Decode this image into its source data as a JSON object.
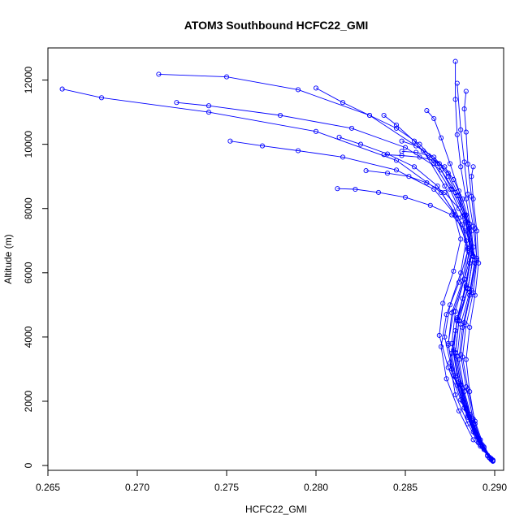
{
  "chart_data": {
    "type": "scatter",
    "title": "ATOM3 Southbound HCFC22_GMI",
    "xlabel": "HCFC22_GMI",
    "ylabel": "Altitude (m)",
    "xlim": [
      0.265,
      0.2905
    ],
    "ylim": [
      -150,
      13000
    ],
    "x_ticks": [
      "0.265",
      "0.270",
      "0.275",
      "0.280",
      "0.285",
      "0.290"
    ],
    "y_ticks": [
      "0",
      "2000",
      "4000",
      "6000",
      "8000",
      "10000",
      "12000"
    ],
    "grid": false,
    "legend": "none",
    "color": "#0000ff",
    "marker": "open-circle",
    "series": [
      {
        "x": [
          0.2899,
          0.2892,
          0.2885,
          0.2878,
          0.2875,
          0.2878,
          0.2882,
          0.2886,
          0.2882,
          0.287,
          0.2845,
          0.28,
          0.274,
          0.268,
          0.2658
        ],
        "y": [
          150,
          600,
          1300,
          2200,
          3200,
          4200,
          5200,
          6300,
          7500,
          8500,
          9500,
          10400,
          11000,
          11450,
          11720
        ]
      },
      {
        "x": [
          0.2898,
          0.2888,
          0.288,
          0.2873,
          0.287,
          0.2873,
          0.288,
          0.2885,
          0.288,
          0.2872,
          0.286,
          0.283,
          0.279,
          0.275,
          0.2712
        ],
        "y": [
          200,
          800,
          1700,
          2700,
          3700,
          4700,
          5700,
          6700,
          7700,
          8700,
          9800,
          10900,
          11700,
          12100,
          12180
        ]
      },
      {
        "x": [
          0.2897,
          0.289,
          0.2883,
          0.2877,
          0.2874,
          0.2877,
          0.2883,
          0.2888,
          0.2884,
          0.2878,
          0.287,
          0.285,
          0.282,
          0.278,
          0.274,
          0.2722
        ],
        "y": [
          250,
          900,
          1800,
          2800,
          3800,
          4800,
          5800,
          6800,
          7800,
          8500,
          9200,
          9900,
          10500,
          10900,
          11200,
          11300
        ]
      },
      {
        "x": [
          0.2896,
          0.2889,
          0.2882,
          0.2876,
          0.2872,
          0.2875,
          0.2881,
          0.2884,
          0.2878,
          0.2866,
          0.2845,
          0.2815,
          0.279,
          0.277,
          0.2752
        ],
        "y": [
          300,
          1000,
          2000,
          3000,
          4000,
          5000,
          6000,
          7000,
          7800,
          8600,
          9200,
          9600,
          9800,
          9950,
          10100
        ]
      },
      {
        "x": [
          0.2898,
          0.2891,
          0.2885,
          0.2879,
          0.2876,
          0.2879,
          0.2885,
          0.2888,
          0.2884,
          0.2876,
          0.2864,
          0.285,
          0.2835,
          0.2822,
          0.2812
        ],
        "y": [
          180,
          700,
          1500,
          2500,
          3500,
          4500,
          5500,
          6500,
          7300,
          7800,
          8100,
          8350,
          8500,
          8600,
          8620
        ]
      },
      {
        "x": [
          0.2899,
          0.2893,
          0.2887,
          0.2882,
          0.2879,
          0.2881,
          0.2886,
          0.2889,
          0.2886,
          0.288,
          0.2872,
          0.2862,
          0.2852,
          0.284,
          0.2828
        ],
        "y": [
          160,
          600,
          1400,
          2400,
          3400,
          4400,
          5400,
          6400,
          7400,
          8000,
          8500,
          8800,
          9000,
          9100,
          9180
        ]
      },
      {
        "x": [
          0.2898,
          0.2892,
          0.2886,
          0.288,
          0.2877,
          0.2879,
          0.2884,
          0.2887,
          0.2884,
          0.2879,
          0.2874,
          0.2869,
          0.2863,
          0.2856,
          0.2848
        ],
        "y": [
          220,
          800,
          1600,
          2600,
          3600,
          4600,
          5600,
          6600,
          7600,
          8400,
          9000,
          9400,
          9650,
          9750,
          9780
        ]
      },
      {
        "x": [
          0.2899,
          0.2894,
          0.2888,
          0.2883,
          0.288,
          0.2882,
          0.2886,
          0.2889,
          0.2887,
          0.2884,
          0.2881,
          0.2879,
          0.2878,
          0.2878
        ],
        "y": [
          140,
          550,
          1300,
          2300,
          3300,
          4300,
          5300,
          6300,
          7300,
          8300,
          9300,
          10300,
          11400,
          12580
        ]
      },
      {
        "x": [
          0.2897,
          0.289,
          0.2884,
          0.2879,
          0.2876,
          0.2878,
          0.2883,
          0.2886,
          0.2883,
          0.2876,
          0.2868,
          0.2858,
          0.2845,
          0.283,
          0.2815,
          0.28
        ],
        "y": [
          260,
          900,
          1800,
          2800,
          3800,
          4800,
          5800,
          6800,
          7800,
          8600,
          9400,
          10000,
          10500,
          10900,
          11300,
          11750
        ]
      },
      {
        "x": [
          0.2898,
          0.2891,
          0.2885,
          0.288,
          0.2877,
          0.2879,
          0.2884,
          0.2887,
          0.2885,
          0.288,
          0.2875,
          0.287,
          0.2866,
          0.2862
        ],
        "y": [
          200,
          750,
          1550,
          2550,
          3550,
          4550,
          5550,
          6550,
          7550,
          8550,
          9400,
          10200,
          10800,
          11050
        ]
      },
      {
        "x": [
          0.2899,
          0.2893,
          0.2888,
          0.2884,
          0.2881,
          0.2883,
          0.2887,
          0.289,
          0.2888,
          0.2885,
          0.2883,
          0.2881,
          0.2879
        ],
        "y": [
          170,
          650,
          1450,
          2450,
          3450,
          4450,
          5450,
          6450,
          7450,
          8450,
          9450,
          10450,
          11900
        ]
      },
      {
        "x": [
          0.2896,
          0.2888,
          0.2881,
          0.2874,
          0.2869,
          0.2871,
          0.2877,
          0.2881,
          0.2877,
          0.2868,
          0.2855,
          0.284,
          0.2825,
          0.2813
        ],
        "y": [
          320,
          1050,
          2050,
          3050,
          4050,
          5050,
          6050,
          7050,
          7900,
          8700,
          9300,
          9700,
          10000,
          10220
        ]
      },
      {
        "x": [
          0.2898,
          0.2892,
          0.2886,
          0.2881,
          0.2878,
          0.288,
          0.2885,
          0.2888,
          0.2886,
          0.2882,
          0.2877,
          0.2872,
          0.2866,
          0.2858,
          0.2848,
          0.2838
        ],
        "y": [
          210,
          720,
          1520,
          2520,
          3520,
          4520,
          5520,
          6520,
          7520,
          8300,
          8900,
          9300,
          9500,
          9600,
          9650,
          9680
        ]
      },
      {
        "x": [
          0.2899,
          0.2894,
          0.2889,
          0.2885,
          0.2882,
          0.2884,
          0.2888,
          0.289,
          0.2889,
          0.2887,
          0.2885,
          0.2884,
          0.2883,
          0.2884
        ],
        "y": [
          150,
          580,
          1380,
          2380,
          3380,
          4380,
          5380,
          6380,
          7380,
          8380,
          9380,
          10380,
          11100,
          11650
        ]
      },
      {
        "x": [
          0.2897,
          0.2891,
          0.2884,
          0.2878,
          0.2874,
          0.2876,
          0.2882,
          0.2885,
          0.2882,
          0.2875,
          0.2866,
          0.2855,
          0.2845,
          0.2838
        ],
        "y": [
          240,
          850,
          1750,
          2750,
          3750,
          4750,
          5750,
          6750,
          7750,
          8600,
          9400,
          10100,
          10600,
          10900
        ]
      },
      {
        "x": [
          0.2899,
          0.2894,
          0.2889,
          0.2886,
          0.2884,
          0.2886,
          0.2889,
          0.2891,
          0.289,
          0.2888,
          0.2887,
          0.2888
        ],
        "y": [
          130,
          500,
          1300,
          2300,
          3300,
          4300,
          5300,
          6300,
          7300,
          8300,
          9000,
          9300
        ]
      },
      {
        "x": [
          0.2898,
          0.2892,
          0.2886,
          0.2881,
          0.2878,
          0.288,
          0.2885,
          0.2888,
          0.2885,
          0.288,
          0.2874,
          0.2866,
          0.2856,
          0.2848
        ],
        "y": [
          190,
          700,
          1500,
          2500,
          3500,
          4500,
          5500,
          6500,
          7500,
          8400,
          9100,
          9600,
          9950,
          10100
        ]
      }
    ]
  }
}
